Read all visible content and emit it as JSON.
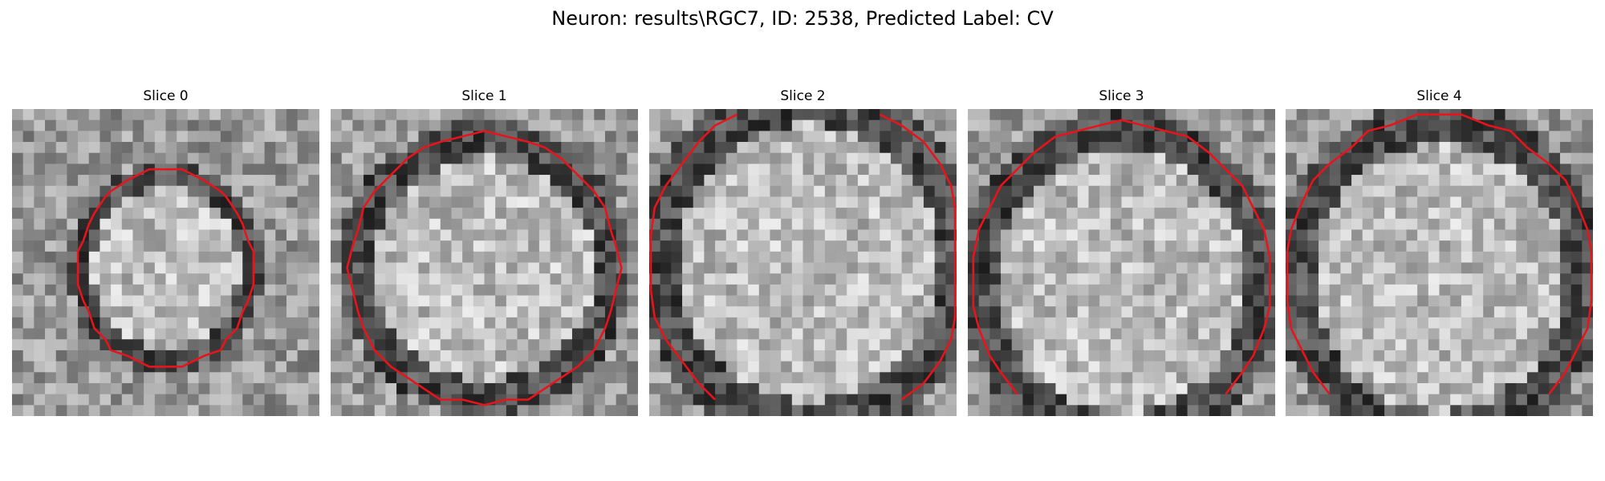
{
  "figure": {
    "title": "Neuron: results\\RGC7, ID: 2538, Predicted Label: CV"
  },
  "colors": {
    "contour": "#e8141b"
  },
  "panels": [
    {
      "title": "Slice 0"
    },
    {
      "title": "Slice 1"
    },
    {
      "title": "Slice 2"
    },
    {
      "title": "Slice 3"
    },
    {
      "title": "Slice 4"
    }
  ]
}
